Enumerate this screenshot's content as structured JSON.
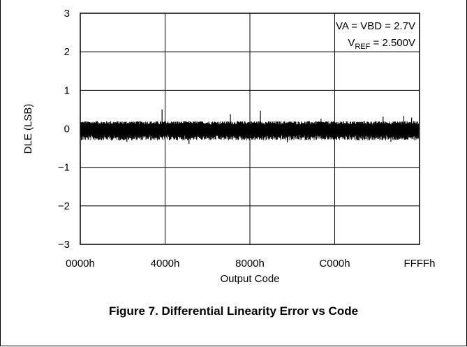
{
  "chart_data": {
    "type": "line",
    "title": "Figure 7. Differential Linearity Error vs Code",
    "xlabel": "Output Code",
    "ylabel": "DLE (LSB)",
    "ylim": [
      -3,
      3
    ],
    "xlim": [
      0,
      65535
    ],
    "y_ticks": [
      3,
      2,
      1,
      0,
      -1,
      -2,
      -3
    ],
    "y_tick_labels": [
      "3",
      "2",
      "1",
      "0",
      "−1",
      "−2",
      "−3"
    ],
    "x_ticks": [
      0,
      16384,
      32768,
      49152,
      65535
    ],
    "x_tick_labels": [
      "0000h",
      "4000h",
      "8000h",
      "C000h",
      "FFFFh"
    ],
    "grid": true,
    "annotation": {
      "line1": "VA = VBD = 2.7V",
      "line2_prefix": "V",
      "line2_sub": "REF",
      "line2_suffix": " = 2.500V"
    },
    "series": [
      {
        "color": "#000000",
        "band_upper": 0.2,
        "band_lower": -0.3,
        "spikes": [
          {
            "x": 3200,
            "y": 0.2
          },
          {
            "x": 15800,
            "y": 0.5
          },
          {
            "x": 29000,
            "y": 0.38
          },
          {
            "x": 34800,
            "y": 0.47
          },
          {
            "x": 46500,
            "y": 0.26
          },
          {
            "x": 58500,
            "y": 0.32
          },
          {
            "x": 62500,
            "y": 0.33
          },
          {
            "x": 64000,
            "y": 0.29
          },
          {
            "x": 9000,
            "y": -0.34
          },
          {
            "x": 21000,
            "y": -0.39
          },
          {
            "x": 40000,
            "y": -0.35
          },
          {
            "x": 60000,
            "y": -0.34
          }
        ]
      }
    ]
  }
}
